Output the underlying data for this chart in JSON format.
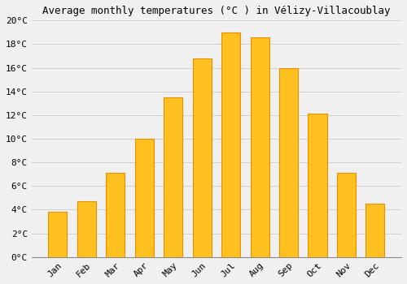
{
  "title": "Average monthly temperatures (°C ) in Vélizy-Villacoublay",
  "months": [
    "Jan",
    "Feb",
    "Mar",
    "Apr",
    "May",
    "Jun",
    "Jul",
    "Aug",
    "Sep",
    "Oct",
    "Nov",
    "Dec"
  ],
  "values": [
    3.8,
    4.7,
    7.1,
    10.0,
    13.5,
    16.8,
    19.0,
    18.6,
    16.0,
    12.1,
    7.1,
    4.5
  ],
  "bar_color": "#FFC020",
  "bar_edge_color": "#E89000",
  "ylim": [
    0,
    20
  ],
  "yticks": [
    0,
    2,
    4,
    6,
    8,
    10,
    12,
    14,
    16,
    18,
    20
  ],
  "ytick_labels": [
    "0°C",
    "2°C",
    "4°C",
    "6°C",
    "8°C",
    "10°C",
    "12°C",
    "14°C",
    "16°C",
    "18°C",
    "20°C"
  ],
  "background_color": "#f0f0f0",
  "grid_color": "#d0d0d0",
  "title_fontsize": 9,
  "tick_fontsize": 8,
  "bar_width": 0.65,
  "figsize": [
    5.0,
    3.5
  ],
  "dpi": 100
}
